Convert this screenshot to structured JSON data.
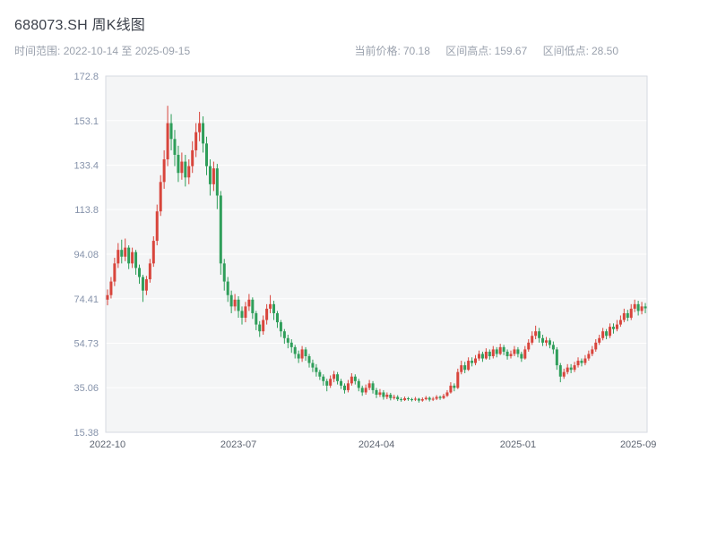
{
  "header": {
    "title": "688073.SH 周K线图",
    "time_range": {
      "label": "时间范围:",
      "value": "2022-10-14 至 2025-09-15"
    },
    "stats": [
      {
        "label": "当前价格:",
        "value": "70.18"
      },
      {
        "label": "区间高点:",
        "value": "159.67"
      },
      {
        "label": "区间低点:",
        "value": "28.50"
      }
    ]
  },
  "chart_data": {
    "type": "candlestick",
    "title": "688073.SH 周K线图",
    "symbol": "688073.SH",
    "period": "周K线",
    "start_date": "2022-10-14",
    "end_date": "2025-09-15",
    "current_price": 70.18,
    "range_high": 159.67,
    "range_low": 28.5,
    "ylim": [
      15.38,
      172.8
    ],
    "y_ticks": [
      "15.38",
      "35.06",
      "54.73",
      "74.41",
      "94.08",
      "113.8",
      "133.4",
      "153.1",
      "172.8"
    ],
    "x_ticks": [
      {
        "label": "2022-10",
        "index": 0
      },
      {
        "label": "2023-07",
        "index": 37
      },
      {
        "label": "2024-04",
        "index": 76
      },
      {
        "label": "2025-01",
        "index": 116
      },
      {
        "label": "2025-09",
        "index": 150
      }
    ],
    "grid": true,
    "legend": false,
    "up_color": "#d8453c",
    "down_color": "#2f9e5a",
    "plot_bg": "#f4f5f6",
    "plot_border": "#d6dae0",
    "grid_color": "#ffffff",
    "axis_label_color": "#8693ab",
    "x_label_color": "#5c6370",
    "candles": [
      [
        74,
        76,
        71.5,
        78.5
      ],
      [
        76,
        82,
        74.5,
        84
      ],
      [
        82,
        90,
        80,
        92.5
      ],
      [
        90,
        96,
        88,
        99
      ],
      [
        96,
        93,
        90,
        100.5
      ],
      [
        93,
        97,
        91,
        101
      ],
      [
        97,
        90,
        87.5,
        98
      ],
      [
        90,
        95,
        88,
        97
      ],
      [
        95,
        88,
        85,
        96
      ],
      [
        88,
        84,
        81,
        89.5
      ],
      [
        84,
        78,
        73,
        85
      ],
      [
        78,
        83,
        76,
        84.5
      ],
      [
        83,
        90,
        81.5,
        92
      ],
      [
        90,
        100,
        88.5,
        102
      ],
      [
        100,
        113,
        98,
        116
      ],
      [
        113,
        126,
        111,
        129
      ],
      [
        126,
        136,
        123,
        140
      ],
      [
        136,
        152,
        133,
        159.67
      ],
      [
        152,
        145,
        140,
        156
      ],
      [
        145,
        138,
        133,
        149
      ],
      [
        138,
        130,
        126,
        142
      ],
      [
        130,
        135,
        127,
        139
      ],
      [
        135,
        128,
        124,
        138
      ],
      [
        128,
        133,
        125,
        136
      ],
      [
        133,
        140,
        130,
        144
      ],
      [
        140,
        148,
        137,
        152
      ],
      [
        148,
        152,
        144,
        157
      ],
      [
        152,
        143,
        139,
        155
      ],
      [
        143,
        133,
        129,
        146
      ],
      [
        133,
        125,
        120,
        136
      ],
      [
        125,
        132,
        122,
        135
      ],
      [
        132,
        120,
        114,
        134
      ],
      [
        120,
        90,
        85,
        122
      ],
      [
        90,
        82,
        78,
        92
      ],
      [
        82,
        76,
        73,
        84
      ],
      [
        76,
        71,
        68,
        78
      ],
      [
        71,
        74,
        69,
        76.5
      ],
      [
        74,
        69,
        66,
        75.5
      ],
      [
        69,
        66,
        63,
        71
      ],
      [
        66,
        71,
        64,
        73
      ],
      [
        71,
        74,
        69,
        76.5
      ],
      [
        74,
        68,
        65.5,
        75
      ],
      [
        68,
        63,
        60.5,
        69
      ],
      [
        63,
        60,
        57.5,
        64.5
      ],
      [
        60,
        65,
        58.5,
        67
      ],
      [
        65,
        70,
        63,
        72
      ],
      [
        70,
        72,
        68,
        76
      ],
      [
        72,
        68,
        65,
        73.5
      ],
      [
        68,
        64,
        61.5,
        69
      ],
      [
        64,
        60,
        57.5,
        65
      ],
      [
        60,
        57,
        54.5,
        61
      ],
      [
        57,
        55,
        52.5,
        58.5
      ],
      [
        55,
        53,
        50.5,
        56.5
      ],
      [
        53,
        50,
        48,
        54
      ],
      [
        50,
        48,
        46,
        51.5
      ],
      [
        48,
        52,
        46.5,
        53.5
      ],
      [
        52,
        49,
        47,
        53
      ],
      [
        49,
        46,
        44,
        50
      ],
      [
        46,
        44,
        42,
        47.5
      ],
      [
        44,
        42,
        40,
        45.5
      ],
      [
        42,
        40,
        38.5,
        43
      ],
      [
        40,
        38,
        36,
        41
      ],
      [
        38,
        36,
        33.5,
        39
      ],
      [
        36,
        39,
        35,
        40.5
      ],
      [
        39,
        41,
        37.5,
        42.5
      ],
      [
        41,
        38,
        36.5,
        42
      ],
      [
        38,
        36,
        34.5,
        39
      ],
      [
        36,
        34,
        32.5,
        37
      ],
      [
        34,
        37,
        33,
        38.5
      ],
      [
        37,
        40,
        36,
        41.5
      ],
      [
        40,
        38,
        36.5,
        41
      ],
      [
        38,
        35,
        33.5,
        39
      ],
      [
        35,
        33,
        31.5,
        36
      ],
      [
        33,
        35,
        32,
        36.5
      ],
      [
        35,
        37,
        34,
        38.5
      ],
      [
        37,
        34,
        32.5,
        38
      ],
      [
        34,
        32,
        30.5,
        35
      ],
      [
        32,
        33,
        31,
        34.5
      ],
      [
        33,
        31,
        29.8,
        34
      ],
      [
        31,
        32,
        30,
        33
      ],
      [
        32,
        30.5,
        29.5,
        32.8
      ],
      [
        30.5,
        31,
        29.8,
        32
      ],
      [
        31,
        30,
        29.2,
        31.8
      ],
      [
        30,
        29.6,
        28.9,
        30.8
      ],
      [
        29.6,
        30.4,
        29.2,
        31.2
      ],
      [
        30.4,
        30,
        29.3,
        31
      ],
      [
        30,
        29.8,
        29,
        30.6
      ],
      [
        29.8,
        30.2,
        29.2,
        31
      ],
      [
        30.2,
        29.4,
        28.5,
        30.6
      ],
      [
        29.4,
        30,
        28.9,
        30.8
      ],
      [
        30,
        30.6,
        29.5,
        31.4
      ],
      [
        30.6,
        29.8,
        29,
        31.2
      ],
      [
        29.8,
        30.2,
        29.2,
        31
      ],
      [
        30.2,
        31,
        29.6,
        31.8
      ],
      [
        31,
        30.5,
        29.7,
        31.6
      ],
      [
        30.5,
        31.5,
        30,
        32.4
      ],
      [
        31.5,
        33,
        31,
        34
      ],
      [
        33,
        36,
        32.5,
        37.5
      ],
      [
        36,
        35,
        33.5,
        37
      ],
      [
        35,
        42,
        34.5,
        43.5
      ],
      [
        42,
        45,
        41,
        47
      ],
      [
        45,
        43,
        41.5,
        46.5
      ],
      [
        43,
        47,
        42.5,
        48.5
      ],
      [
        47,
        46,
        44.5,
        48.5
      ],
      [
        46,
        48,
        45,
        49.5
      ],
      [
        48,
        50,
        47,
        51.5
      ],
      [
        50,
        48,
        46.5,
        51
      ],
      [
        48,
        51,
        47.5,
        52.5
      ],
      [
        51,
        49,
        47.5,
        52
      ],
      [
        49,
        52,
        48,
        53.5
      ],
      [
        52,
        50,
        48.5,
        53
      ],
      [
        50,
        53,
        49.5,
        54.5
      ],
      [
        53,
        51,
        49.5,
        54
      ],
      [
        51,
        49,
        47.5,
        52
      ],
      [
        49,
        50,
        48,
        51.5
      ],
      [
        50,
        52,
        49,
        53.5
      ],
      [
        52,
        50,
        48.5,
        53
      ],
      [
        50,
        48,
        46.5,
        51
      ],
      [
        48,
        52,
        47.5,
        53.5
      ],
      [
        52,
        55,
        51,
        56.5
      ],
      [
        55,
        58,
        54,
        60
      ],
      [
        58,
        60,
        56.5,
        62.5
      ],
      [
        60,
        57,
        55,
        61.5
      ],
      [
        57,
        55,
        53.5,
        58.5
      ],
      [
        55,
        56,
        53.5,
        57.5
      ],
      [
        56,
        54,
        52.5,
        57
      ],
      [
        54,
        52,
        50,
        55.5
      ],
      [
        52,
        45,
        43,
        53
      ],
      [
        45,
        40,
        37.5,
        46
      ],
      [
        40,
        42,
        39,
        43.5
      ],
      [
        42,
        44,
        41,
        45.5
      ],
      [
        44,
        43,
        41.5,
        45.5
      ],
      [
        43,
        45,
        42,
        46.5
      ],
      [
        45,
        47,
        44,
        48.5
      ],
      [
        47,
        46,
        44.5,
        48
      ],
      [
        46,
        48,
        45,
        49.5
      ],
      [
        48,
        50,
        47,
        51.5
      ],
      [
        50,
        52,
        49,
        53.5
      ],
      [
        52,
        55,
        51,
        56.5
      ],
      [
        55,
        57,
        54,
        58.5
      ],
      [
        57,
        60,
        56,
        61.5
      ],
      [
        60,
        58,
        56.5,
        61
      ],
      [
        58,
        62,
        57,
        63.5
      ],
      [
        62,
        61,
        59,
        63.5
      ],
      [
        61,
        63,
        60,
        65
      ],
      [
        63,
        65,
        62,
        67
      ],
      [
        65,
        68,
        64,
        70
      ],
      [
        68,
        66,
        64.5,
        69.5
      ],
      [
        66,
        70,
        65,
        72
      ],
      [
        70,
        72,
        68.5,
        74
      ],
      [
        72,
        69,
        67,
        73.5
      ],
      [
        69,
        71,
        67.5,
        73
      ],
      [
        71,
        70.18,
        68,
        72.5
      ]
    ]
  }
}
